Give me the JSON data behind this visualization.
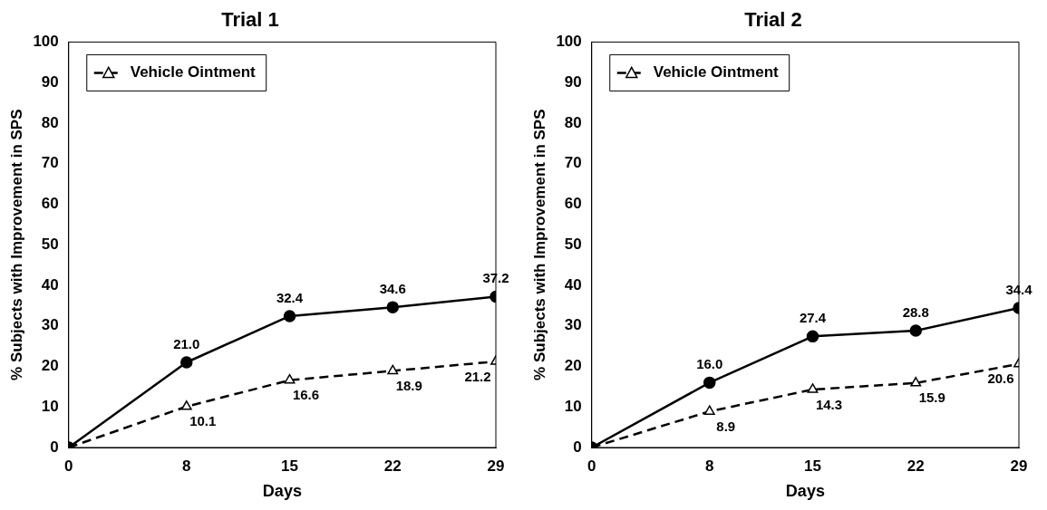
{
  "chart_data": [
    {
      "type": "line",
      "title": "Trial 1",
      "xlabel": "Days",
      "ylabel": "% Subjects with Improvement in SPS",
      "x": [
        0,
        8,
        15,
        22,
        29
      ],
      "xlim": [
        0,
        29
      ],
      "xticks": [
        0,
        8,
        15,
        22,
        29
      ],
      "ylim": [
        0,
        100
      ],
      "yticks": [
        0,
        10,
        20,
        30,
        40,
        50,
        60,
        70,
        80,
        90,
        100
      ],
      "grid": false,
      "legend": "top left",
      "series": [
        {
          "color": "#000000",
          "marker": "circle",
          "line_style": "solid",
          "values": [
            0,
            21.0,
            32.4,
            34.6,
            37.2
          ],
          "value_labels": [
            null,
            "21.0",
            "32.4",
            "34.6",
            "37.2"
          ]
        },
        {
          "name": "Vehicle Ointment",
          "color": "#000000",
          "marker": "triangle",
          "line_style": "dashed",
          "values": [
            0,
            10.1,
            16.6,
            18.9,
            21.2
          ],
          "value_labels": [
            null,
            "10.1",
            "16.6",
            "18.9",
            "21.2"
          ]
        }
      ]
    },
    {
      "type": "line",
      "title": "Trial 2",
      "xlabel": "Days",
      "ylabel": "% Subjects with Improvement in SPS",
      "x": [
        0,
        8,
        15,
        22,
        29
      ],
      "xlim": [
        0,
        29
      ],
      "xticks": [
        0,
        8,
        15,
        22,
        29
      ],
      "ylim": [
        0,
        100
      ],
      "yticks": [
        0,
        10,
        20,
        30,
        40,
        50,
        60,
        70,
        80,
        90,
        100
      ],
      "grid": false,
      "legend": "top left",
      "series": [
        {
          "color": "#000000",
          "marker": "circle",
          "line_style": "solid",
          "values": [
            0,
            16.0,
            27.4,
            28.8,
            34.4
          ],
          "value_labels": [
            null,
            "16.0",
            "27.4",
            "28.8",
            "34.4"
          ]
        },
        {
          "name": "Vehicle Ointment",
          "color": "#000000",
          "marker": "triangle",
          "line_style": "dashed",
          "values": [
            0,
            8.9,
            14.3,
            15.9,
            20.6
          ],
          "value_labels": [
            null,
            "8.9",
            "14.3",
            "15.9",
            "20.6"
          ]
        }
      ]
    }
  ]
}
